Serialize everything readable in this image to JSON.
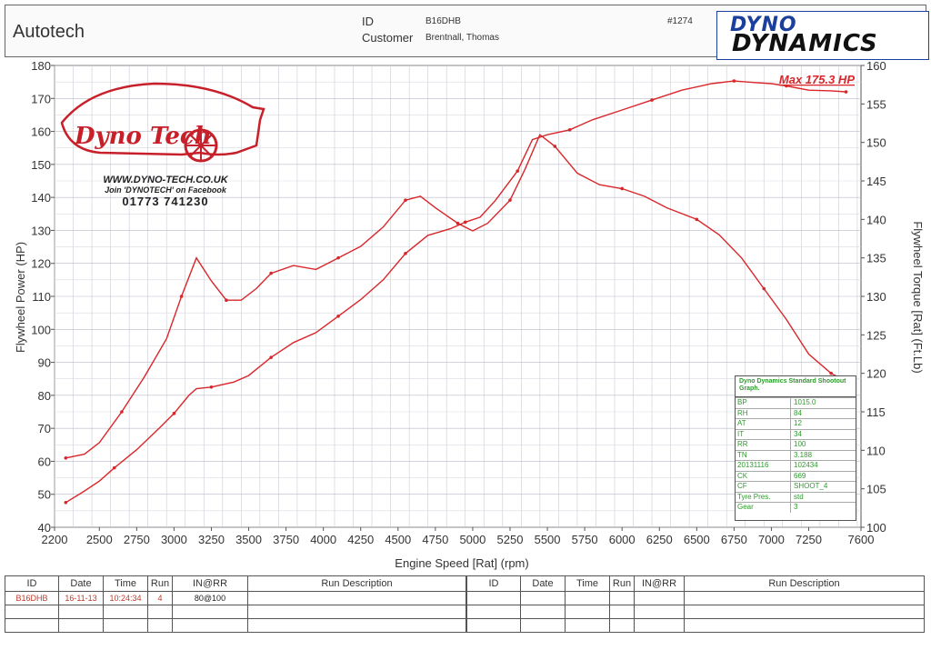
{
  "header": {
    "company": "Autotech",
    "id_label": "ID",
    "id_value": "B16DHB",
    "customer_label": "Customer",
    "customer_value": "Brentnall, Thomas",
    "sheet_number": "#1274",
    "logo_top": "DYNO",
    "logo_bottom": "DYNAMICS"
  },
  "promo": {
    "logo_text": "Dyno Tech",
    "website": "WWW.DYNO-TECH.CO.UK",
    "facebook": "Join 'DYNOTECH' on Facebook",
    "phone": "01773 741230"
  },
  "max_label": "Max 175.3 HP",
  "chart_data": {
    "type": "line",
    "xlabel": "Engine Speed [Rat] (rpm)",
    "ylabel_left": "Flywheel Power (HP)",
    "ylabel_right": "Flywheel Torque [Rat] (Ft.Lb)",
    "xlim": [
      2200,
      7600
    ],
    "ylim_left": [
      40,
      180
    ],
    "ylim_right": [
      100,
      160
    ],
    "x_ticks": [
      "2200",
      "2500",
      "2750",
      "3000",
      "3250",
      "3500",
      "3750",
      "4000",
      "4250",
      "4500",
      "4750",
      "5000",
      "5250",
      "5500",
      "5750",
      "6000",
      "6250",
      "6500",
      "6750",
      "7000",
      "7250",
      "7600"
    ],
    "y_ticks_left": [
      "40",
      "50",
      "60",
      "70",
      "80",
      "90",
      "100",
      "110",
      "120",
      "130",
      "140",
      "150",
      "160",
      "170",
      "180"
    ],
    "y_ticks_right": [
      "100",
      "105",
      "110",
      "115",
      "120",
      "125",
      "130",
      "135",
      "140",
      "145",
      "150",
      "155",
      "160"
    ],
    "grid": true,
    "series": [
      {
        "axis": "left",
        "color": "#d9262a",
        "points": [
          [
            2275,
            47.5
          ],
          [
            2400,
            51
          ],
          [
            2500,
            54
          ],
          [
            2600,
            58
          ],
          [
            2750,
            63.5
          ],
          [
            2900,
            70
          ],
          [
            3000,
            74.5
          ],
          [
            3100,
            80
          ],
          [
            3150,
            82
          ],
          [
            3250,
            82.5
          ],
          [
            3400,
            84
          ],
          [
            3500,
            86
          ],
          [
            3650,
            91.5
          ],
          [
            3800,
            96
          ],
          [
            3950,
            99
          ],
          [
            4100,
            104
          ],
          [
            4250,
            109
          ],
          [
            4400,
            115
          ],
          [
            4550,
            123
          ],
          [
            4700,
            128.5
          ],
          [
            4850,
            130.5
          ],
          [
            4950,
            132.5
          ],
          [
            5050,
            134
          ],
          [
            5150,
            139
          ],
          [
            5300,
            148
          ],
          [
            5400,
            157.5
          ],
          [
            5500,
            159
          ],
          [
            5650,
            160.5
          ],
          [
            5800,
            163.5
          ],
          [
            6000,
            166.5
          ],
          [
            6200,
            169.5
          ],
          [
            6400,
            172.5
          ],
          [
            6600,
            174.5
          ],
          [
            6750,
            175.3
          ],
          [
            6900,
            174.8
          ],
          [
            7000,
            174.5
          ],
          [
            7100,
            173.8
          ],
          [
            7250,
            172.5
          ],
          [
            7400,
            172.3
          ],
          [
            7500,
            172
          ]
        ]
      },
      {
        "axis": "right",
        "color": "#d9262a",
        "points": [
          [
            2275,
            109
          ],
          [
            2400,
            109.5
          ],
          [
            2500,
            111
          ],
          [
            2650,
            115
          ],
          [
            2800,
            119.5
          ],
          [
            2950,
            124.5
          ],
          [
            3050,
            130
          ],
          [
            3150,
            135
          ],
          [
            3250,
            132
          ],
          [
            3350,
            129.5
          ],
          [
            3450,
            129.5
          ],
          [
            3550,
            131
          ],
          [
            3650,
            133
          ],
          [
            3800,
            134
          ],
          [
            3950,
            133.5
          ],
          [
            4100,
            135
          ],
          [
            4250,
            136.5
          ],
          [
            4400,
            139
          ],
          [
            4550,
            142.5
          ],
          [
            4650,
            143
          ],
          [
            4750,
            141.5
          ],
          [
            4900,
            139.5
          ],
          [
            5000,
            138.5
          ],
          [
            5100,
            139.5
          ],
          [
            5250,
            142.5
          ],
          [
            5350,
            146.5
          ],
          [
            5450,
            151
          ],
          [
            5550,
            149.5
          ],
          [
            5700,
            146
          ],
          [
            5850,
            144.5
          ],
          [
            6000,
            144
          ],
          [
            6150,
            143
          ],
          [
            6300,
            141.5
          ],
          [
            6500,
            140
          ],
          [
            6650,
            138
          ],
          [
            6800,
            135
          ],
          [
            6950,
            131
          ],
          [
            7100,
            127
          ],
          [
            7250,
            122.5
          ],
          [
            7400,
            120
          ],
          [
            7500,
            119
          ]
        ]
      }
    ]
  },
  "legend": {
    "title": "Dyno Dynamics Standard Shootout Graph.",
    "rows": [
      [
        "BP",
        "1015.0"
      ],
      [
        "RH",
        "84"
      ],
      [
        "AT",
        "12"
      ],
      [
        "IT",
        "34"
      ],
      [
        "RR",
        "100"
      ],
      [
        "TN",
        "3.188"
      ],
      [
        "20131116",
        "102434"
      ],
      [
        "CK",
        "669"
      ],
      [
        "CF",
        "SHOOT_4"
      ],
      [
        "Tyre Pres.",
        "std"
      ],
      [
        "Gear",
        "3"
      ]
    ]
  },
  "run_table": {
    "headers": [
      "ID",
      "Date",
      "Time",
      "Run",
      "IN@RR",
      "Run Description"
    ],
    "run": {
      "id": "B16DHB",
      "date": "16-11-13",
      "time": "10:24:34",
      "run": "4",
      "inrr": "80@100",
      "description": ""
    }
  }
}
